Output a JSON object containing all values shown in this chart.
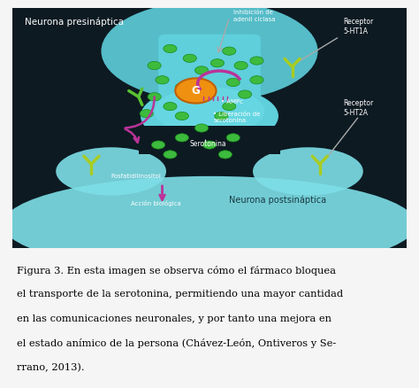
{
  "fig_width": 4.74,
  "fig_height": 4.38,
  "dpi": 100,
  "bg_color": "#f5f5f5",
  "diagram_bg": "#0d1a22",
  "caption_text": "Figura 3. En esta imagen se observa cómo el fármaco bloquea\nel transporte de la serotonina, permitiendo una mayor cantidad\nen las comunicaciones neuronales, y por tanto una mejora en\nel estado anímico de la persona (Chávez-León, Ontiveros y Se-\nrrano, 2013).",
  "caption_font_size": 8.2,
  "pre_neuron_color": "#5ecfdb",
  "pre_neuron_inner": "#3ab8cc",
  "post_neuron_color": "#7edfe8",
  "synapse_dark": "#0d1a22",
  "green_dot_color": "#3dbb3d",
  "green_receptor_color": "#5ac232",
  "yellow_green_receptor": "#a8cc22",
  "G_color": "#f09010",
  "G_edge_color": "#c06000",
  "arrow_purple": "#bb3399",
  "white_label": "#ffffff",
  "dark_label": "#1a3a44",
  "gray_arrow": "#aaaaaa",
  "label_pre": "Neurona presináptica",
  "label_post": "Neurona postsináptica",
  "label_receptor_1": "Receptor\n5-HT1A",
  "label_receptor_2": "Receptor\n5-HT2A",
  "label_serotonina": "Serotonina",
  "label_inhibicion": "Inhibición de\nadenil ciclasa",
  "label_ampc": "• AMPc",
  "label_liberacion": "• Liberación de\nserotonina",
  "label_fosfatidil": "Fosfatidilinositol",
  "label_accion": "Acción biológica"
}
